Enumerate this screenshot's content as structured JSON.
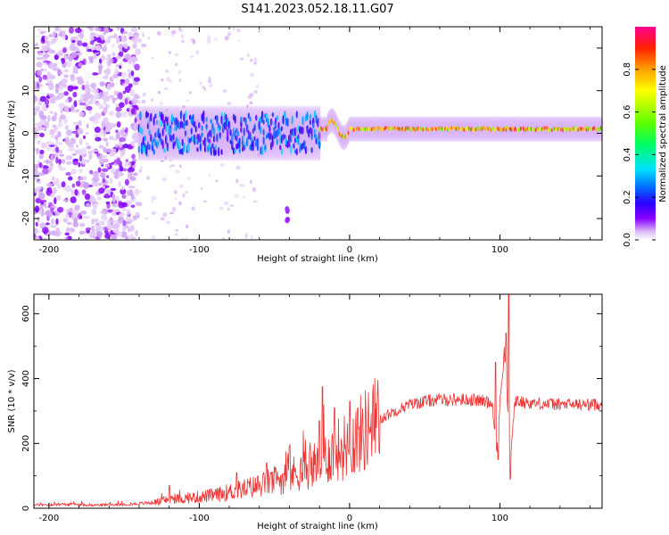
{
  "figure": {
    "title": "S141.2023.052.18.11.G07"
  },
  "chart_data": [
    {
      "type": "heatmap",
      "xlabel": "Height of straight line (km)",
      "ylabel": "Frequency (Hz)",
      "xlim": [
        -210,
        168
      ],
      "ylim": [
        -25,
        25
      ],
      "xticks": [
        -200,
        -100,
        0,
        100
      ],
      "yticks": [
        -20,
        -10,
        0,
        10,
        20
      ],
      "colorbar": {
        "label": "Normalized spectral amplitude",
        "range": [
          0,
          1
        ],
        "ticks": [
          "0.0",
          "0.2",
          "0.4",
          "0.6",
          "0.8"
        ],
        "colormap": "gist_ncar-like (white/violet → blue → cyan → green → yellow → orange → red → magenta)",
        "colors": [
          "#ffffff",
          "#d9b8f5",
          "#8a00ff",
          "#2a00ff",
          "#0070ff",
          "#00e0ff",
          "#00ff60",
          "#60ff00",
          "#ffff00",
          "#ffa000",
          "#ff2000",
          "#ff0090"
        ]
      },
      "features": [
        {
          "x_range": [
            -210,
            -140
          ],
          "freq_range": [
            -25,
            25
          ],
          "amplitude": 0.05,
          "note": "scattered violet noise"
        },
        {
          "x_range": [
            -140,
            -20
          ],
          "freq_center": 0,
          "freq_halfwidth": 5,
          "amplitude": 0.3
        },
        {
          "x_range": [
            -20,
            168
          ],
          "freq_center": 1,
          "freq_halfwidth": 1.5,
          "amplitude": 0.9
        },
        {
          "x": -42,
          "freq": -19,
          "amplitude": 0.1
        }
      ]
    },
    {
      "type": "line",
      "xlabel": "Height of straight line (km)",
      "ylabel": "SNR (10 * v/v)",
      "xlim": [
        -210,
        168
      ],
      "ylim": [
        0,
        660
      ],
      "xticks": [
        -200,
        -100,
        0,
        100
      ],
      "yticks": [
        0,
        200,
        400,
        600
      ],
      "color": "#ee3333",
      "series": [
        {
          "x": [
            -210,
            -190,
            -170,
            -150,
            -140,
            -130,
            -120,
            -110,
            -100,
            -90,
            -80,
            -70,
            -60,
            -50,
            -40,
            -30,
            -20,
            -10,
            0,
            10,
            20,
            30,
            40,
            50,
            60,
            70,
            80,
            90,
            95,
            98,
            100,
            103,
            105,
            107,
            110,
            120,
            140,
            168
          ],
          "values": [
            10,
            12,
            10,
            12,
            14,
            18,
            28,
            30,
            35,
            40,
            50,
            60,
            70,
            85,
            100,
            120,
            140,
            175,
            200,
            240,
            275,
            300,
            320,
            330,
            335,
            335,
            335,
            330,
            325,
            170,
            330,
            480,
            340,
            150,
            330,
            325,
            320,
            320
          ]
        }
      ],
      "spikes": [
        {
          "x": -120,
          "y": 70
        },
        {
          "x": -75,
          "y": 110
        },
        {
          "x": -55,
          "y": 140
        },
        {
          "x": -40,
          "y": 190
        },
        {
          "x": -20,
          "y": 270
        },
        {
          "x": -18,
          "y": 375
        },
        {
          "x": -10,
          "y": 310
        },
        {
          "x": 0,
          "y": 330
        },
        {
          "x": 97,
          "y": 450
        },
        {
          "x": 99,
          "y": 150
        },
        {
          "x": 104,
          "y": 540
        },
        {
          "x": 106,
          "y": 660
        },
        {
          "x": 107,
          "y": 90
        }
      ]
    }
  ]
}
